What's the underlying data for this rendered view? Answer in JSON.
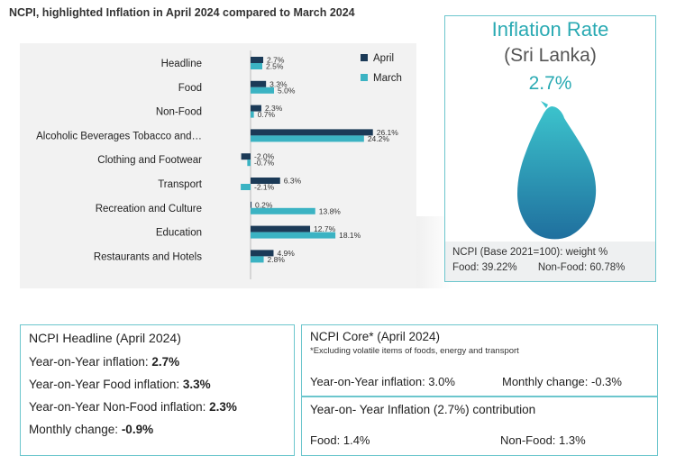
{
  "title": "NCPI, highlighted Inflation in April 2024 compared to March 2024",
  "colors": {
    "april": "#1b3a57",
    "march": "#3bb3c3",
    "accent": "#2aaab3"
  },
  "chart_data": {
    "type": "bar",
    "orientation": "horizontal",
    "categories": [
      "Headline",
      "Food",
      "Non-Food",
      "Alcoholic Beverages Tobacco and…",
      "Clothing and Footwear",
      "Transport",
      "Recreation and Culture",
      "Education",
      "Restaurants and Hotels"
    ],
    "series": [
      {
        "name": "April",
        "values": [
          2.7,
          3.3,
          2.3,
          26.1,
          -2.0,
          6.3,
          0.2,
          12.7,
          4.9
        ],
        "labels": [
          "2.7%",
          "3.3%",
          "2.3%",
          "26.1%",
          "-2.0%",
          "6.3%",
          "0.2%",
          "12.7%",
          "4.9%"
        ]
      },
      {
        "name": "March",
        "values": [
          2.5,
          5.0,
          0.7,
          24.2,
          -0.7,
          -2.1,
          13.8,
          18.1,
          2.8
        ],
        "labels": [
          "2.5%",
          "5.0%",
          "0.7%",
          "24.2%",
          "-0.7%",
          "-2.1%",
          "13.8%",
          "18.1%",
          "2.8%"
        ]
      }
    ],
    "legend_position": "top-right",
    "xlim": [
      -3,
      28
    ]
  },
  "inflation_card": {
    "title": "Inflation Rate",
    "country": "(Sri Lanka)",
    "value": "2.7%",
    "ncpi_label": "NCPI (Base 2021=100): weight %",
    "food_weight": "Food: 39.22%",
    "nonfood_weight": "Non-Food: 60.78%"
  },
  "headline_box": {
    "heading": "NCPI Headline (April 2024)",
    "yoy_label": "Year-on-Year inflation: ",
    "yoy_value": "2.7%",
    "food_label": "Year-on-Year Food inflation: ",
    "food_value": "3.3%",
    "nonfood_label": "Year-on-Year Non-Food inflation: ",
    "nonfood_value": "2.3%",
    "monthly_label": "Monthly change: ",
    "monthly_value": "-0.9%"
  },
  "core_box": {
    "heading": "NCPI Core* (April 2024)",
    "note": "*Excluding volatile items of foods, energy and transport",
    "yoy": "Year-on-Year inflation: 3.0%",
    "monthly": "Monthly change: -0.3%"
  },
  "contribution_box": {
    "heading": "Year-on- Year Inflation (2.7%) contribution",
    "food": "Food: 1.4%",
    "nonfood": "Non-Food: 1.3%"
  }
}
